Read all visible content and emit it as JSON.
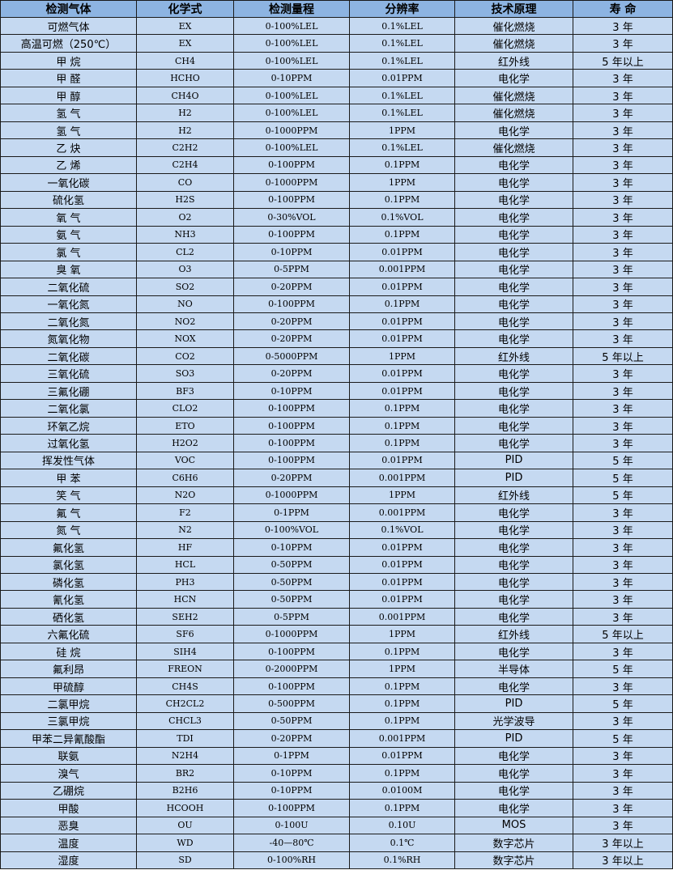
{
  "table": {
    "headers": [
      "检测气体",
      "化学式",
      "检测量程",
      "分辨率",
      "技术原理",
      "寿 命"
    ],
    "rows": [
      [
        "可燃气体",
        "EX",
        "0-100%LEL",
        "0.1%LEL",
        "催化燃烧",
        "3 年"
      ],
      [
        "高温可燃（250℃）",
        "EX",
        "0-100%LEL",
        "0.1%LEL",
        "催化燃烧",
        "3 年"
      ],
      [
        "甲 烷",
        "CH4",
        "0-100%LEL",
        "0.1%LEL",
        "红外线",
        "5 年以上"
      ],
      [
        "甲 醛",
        "HCHO",
        "0-10PPM",
        "0.01PPM",
        "电化学",
        "3 年"
      ],
      [
        "甲 醇",
        "CH4O",
        "0-100%LEL",
        "0.1%LEL",
        "催化燃烧",
        "3 年"
      ],
      [
        "氢 气",
        "H2",
        "0-100%LEL",
        "0.1%LEL",
        "催化燃烧",
        "3 年"
      ],
      [
        "氢 气",
        "H2",
        "0-1000PPM",
        "1PPM",
        "电化学",
        "3 年"
      ],
      [
        "乙 炔",
        "C2H2",
        "0-100%LEL",
        "0.1%LEL",
        "催化燃烧",
        "3 年"
      ],
      [
        "乙 烯",
        "C2H4",
        "0-100PPM",
        "0.1PPM",
        "电化学",
        "3 年"
      ],
      [
        "一氧化碳",
        "CO",
        "0-1000PPM",
        "1PPM",
        "电化学",
        "3 年"
      ],
      [
        "硫化氢",
        "H2S",
        "0-100PPM",
        "0.1PPM",
        "电化学",
        "3 年"
      ],
      [
        "氧 气",
        "O2",
        "0-30%VOL",
        "0.1%VOL",
        "电化学",
        "3 年"
      ],
      [
        "氨 气",
        "NH3",
        "0-100PPM",
        "0.1PPM",
        "电化学",
        "3 年"
      ],
      [
        "氯 气",
        "CL2",
        "0-10PPM",
        "0.01PPM",
        "电化学",
        "3 年"
      ],
      [
        "臭 氧",
        "O3",
        "0-5PPM",
        "0.001PPM",
        "电化学",
        "3 年"
      ],
      [
        "二氧化硫",
        "SO2",
        "0-20PPM",
        "0.01PPM",
        "电化学",
        "3 年"
      ],
      [
        "一氧化氮",
        "NO",
        "0-100PPM",
        "0.1PPM",
        "电化学",
        "3 年"
      ],
      [
        "二氧化氮",
        "NO2",
        "0-20PPM",
        "0.01PPM",
        "电化学",
        "3 年"
      ],
      [
        "氮氧化物",
        "NOX",
        "0-20PPM",
        "0.01PPM",
        "电化学",
        "3 年"
      ],
      [
        "二氧化碳",
        "CO2",
        "0-5000PPM",
        "1PPM",
        "红外线",
        "5 年以上"
      ],
      [
        "三氧化硫",
        "SO3",
        "0-20PPM",
        "0.01PPM",
        "电化学",
        "3 年"
      ],
      [
        "三氟化硼",
        "BF3",
        "0-10PPM",
        "0.01PPM",
        "电化学",
        "3 年"
      ],
      [
        "二氧化氯",
        "CLO2",
        "0-100PPM",
        "0.1PPM",
        "电化学",
        "3 年"
      ],
      [
        "环氧乙烷",
        "ETO",
        "0-100PPM",
        "0.1PPM",
        "电化学",
        "3 年"
      ],
      [
        "过氧化氢",
        "H2O2",
        "0-100PPM",
        "0.1PPM",
        "电化学",
        "3 年"
      ],
      [
        "挥发性气体",
        "VOC",
        "0-100PPM",
        "0.01PPM",
        "PID",
        "5 年"
      ],
      [
        "甲 苯",
        "C6H6",
        "0-20PPM",
        "0.001PPM",
        "PID",
        "5 年"
      ],
      [
        "笑 气",
        "N2O",
        "0-1000PPM",
        "1PPM",
        "红外线",
        "5 年"
      ],
      [
        "氟 气",
        "F2",
        "0-1PPM",
        "0.001PPM",
        "电化学",
        "3 年"
      ],
      [
        "氮 气",
        "N2",
        "0-100%VOL",
        "0.1%VOL",
        "电化学",
        "3 年"
      ],
      [
        "氟化氢",
        "HF",
        "0-10PPM",
        "0.01PPM",
        "电化学",
        "3 年"
      ],
      [
        "氯化氢",
        "HCL",
        "0-50PPM",
        "0.01PPM",
        "电化学",
        "3 年"
      ],
      [
        "磷化氢",
        "PH3",
        "0-50PPM",
        "0.01PPM",
        "电化学",
        "3 年"
      ],
      [
        "氰化氢",
        "HCN",
        "0-50PPM",
        "0.01PPM",
        "电化学",
        "3 年"
      ],
      [
        "硒化氢",
        "SEH2",
        "0-5PPM",
        "0.001PPM",
        "电化学",
        "3 年"
      ],
      [
        "六氟化硫",
        "SF6",
        "0-1000PPM",
        "1PPM",
        "红外线",
        "5 年以上"
      ],
      [
        "硅 烷",
        "SIH4",
        "0-100PPM",
        "0.1PPM",
        "电化学",
        "3 年"
      ],
      [
        "氟利昂",
        "FREON",
        "0-2000PPM",
        "1PPM",
        "半导体",
        "5 年"
      ],
      [
        "甲硫醇",
        "CH4S",
        "0-100PPM",
        "0.1PPM",
        "电化学",
        "3 年"
      ],
      [
        "二氯甲烷",
        "CH2CL2",
        "0-500PPM",
        "0.1PPM",
        "PID",
        "5 年"
      ],
      [
        "三氯甲烷",
        "CHCL3",
        "0-50PPM",
        "0.1PPM",
        "光学波导",
        "3 年"
      ],
      [
        "甲苯二异氰酸酯",
        "TDI",
        "0-20PPM",
        "0.001PPM",
        "PID",
        "5 年"
      ],
      [
        "联氨",
        "N2H4",
        "0-1PPM",
        "0.01PPM",
        "电化学",
        "3 年"
      ],
      [
        "溴气",
        "BR2",
        "0-10PPM",
        "0.1PPM",
        "电化学",
        "3 年"
      ],
      [
        "乙硼烷",
        "B2H6",
        "0-10PPM",
        "0.0100M",
        "电化学",
        "3 年"
      ],
      [
        "甲酸",
        "HCOOH",
        "0-100PPM",
        "0.1PPM",
        "电化学",
        "3 年"
      ],
      [
        "恶臭",
        "OU",
        "0-100U",
        "0.10U",
        "MOS",
        "3 年"
      ],
      [
        "温度",
        "WD",
        "-40—80℃",
        "0.1℃",
        "数字芯片",
        "3 年以上"
      ],
      [
        "湿度",
        "SD",
        "0-100%RH",
        "0.1%RH",
        "数字芯片",
        "3 年以上"
      ]
    ]
  },
  "colors": {
    "header_bg": "#8db4e2",
    "row_bg": "#c5d9f1",
    "border": "#1a1a1a"
  }
}
